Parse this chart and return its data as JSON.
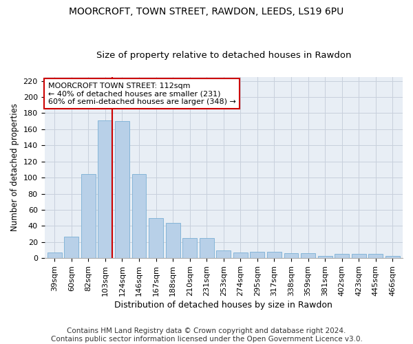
{
  "title1": "MOORCROFT, TOWN STREET, RAWDON, LEEDS, LS19 6PU",
  "title2": "Size of property relative to detached houses in Rawdon",
  "xlabel": "Distribution of detached houses by size in Rawdon",
  "ylabel": "Number of detached properties",
  "categories": [
    "39sqm",
    "60sqm",
    "82sqm",
    "103sqm",
    "124sqm",
    "146sqm",
    "167sqm",
    "188sqm",
    "210sqm",
    "231sqm",
    "253sqm",
    "274sqm",
    "295sqm",
    "317sqm",
    "338sqm",
    "359sqm",
    "381sqm",
    "402sqm",
    "423sqm",
    "445sqm",
    "466sqm"
  ],
  "values": [
    7,
    27,
    104,
    171,
    170,
    104,
    50,
    44,
    25,
    25,
    10,
    7,
    8,
    8,
    6,
    6,
    3,
    5,
    5,
    5,
    3
  ],
  "bar_color": "#b8d0e8",
  "bar_edge_color": "#7aafd4",
  "grid_color": "#c8d0dc",
  "bg_color": "#e8eef5",
  "annotation_text": "MOORCROFT TOWN STREET: 112sqm\n← 40% of detached houses are smaller (231)\n60% of semi-detached houses are larger (348) →",
  "annotation_box_color": "#ffffff",
  "annotation_box_edge": "#cc0000",
  "vline_color": "#cc0000",
  "vline_index": 3,
  "ylim": [
    0,
    225
  ],
  "yticks": [
    0,
    20,
    40,
    60,
    80,
    100,
    120,
    140,
    160,
    180,
    200,
    220
  ],
  "footnote1": "Contains HM Land Registry data © Crown copyright and database right 2024.",
  "footnote2": "Contains public sector information licensed under the Open Government Licence v3.0.",
  "title1_fontsize": 10,
  "title2_fontsize": 9.5,
  "xlabel_fontsize": 9,
  "ylabel_fontsize": 8.5,
  "tick_fontsize": 8,
  "annotation_fontsize": 8,
  "footnote_fontsize": 7.5
}
